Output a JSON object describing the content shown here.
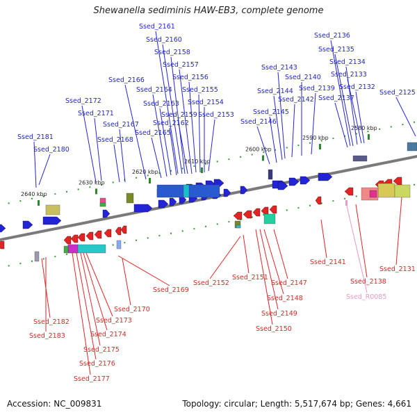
{
  "title": "Shewanella sediminis HAW-EB3, complete genome",
  "accession": "Accession: NC_009831",
  "summary": "Topology: circular; Length: 5,517,674 bp; Genes: 4,661",
  "colors": {
    "forward": "#2323d8",
    "reverse": "#e32424",
    "rna": "#e899c8",
    "backbone": "#7a7a7a",
    "tick": "#2a8a2a"
  },
  "ticks": [
    {
      "label": "2640 kbp"
    },
    {
      "label": "2630 kbp"
    },
    {
      "label": "2620 kbp"
    },
    {
      "label": "2610 kbp"
    },
    {
      "label": "2600 kbp"
    },
    {
      "label": "2590 kbp"
    },
    {
      "label": "2580 kbp"
    }
  ],
  "forward_genes": [
    {
      "label": "Ssed_2181"
    },
    {
      "label": "Ssed_2180"
    },
    {
      "label": "Ssed_2172"
    },
    {
      "label": "Ssed_2171"
    },
    {
      "label": "Ssed_2168"
    },
    {
      "label": "Ssed_2167"
    },
    {
      "label": "Ssed_2166"
    },
    {
      "label": "Ssed_2165"
    },
    {
      "label": "Ssed_2164"
    },
    {
      "label": "Ssed_2163"
    },
    {
      "label": "Ssed_2162"
    },
    {
      "label": "Ssed_2161"
    },
    {
      "label": "Ssed_2160"
    },
    {
      "label": "Ssed_2159"
    },
    {
      "label": "Ssed_2158"
    },
    {
      "label": "Ssed_2157"
    },
    {
      "label": "Ssed_2156"
    },
    {
      "label": "Ssed_2155"
    },
    {
      "label": "Ssed_2154"
    },
    {
      "label": "Ssed_2153"
    },
    {
      "label": "Ssed_2146"
    },
    {
      "label": "Ssed_2145"
    },
    {
      "label": "Ssed_2144"
    },
    {
      "label": "Ssed_2143"
    },
    {
      "label": "Ssed_2142"
    },
    {
      "label": "Ssed_2140"
    },
    {
      "label": "Ssed_2139"
    },
    {
      "label": "Ssed_2137"
    },
    {
      "label": "Ssed_2136"
    },
    {
      "label": "Ssed_2135"
    },
    {
      "label": "Ssed_2134"
    },
    {
      "label": "Ssed_2133"
    },
    {
      "label": "Ssed_2132"
    },
    {
      "label": "Ssed_2125"
    }
  ],
  "reverse_genes": [
    {
      "label": "Ssed_2182"
    },
    {
      "label": "Ssed_2183"
    },
    {
      "label": "Ssed_2173"
    },
    {
      "label": "Ssed_2174"
    },
    {
      "label": "Ssed_2175"
    },
    {
      "label": "Ssed_2176"
    },
    {
      "label": "Ssed_2177"
    },
    {
      "label": "Ssed_2170"
    },
    {
      "label": "Ssed_2169"
    },
    {
      "label": "Ssed_2152"
    },
    {
      "label": "Ssed_2151"
    },
    {
      "label": "Ssed_2147"
    },
    {
      "label": "Ssed_2148"
    },
    {
      "label": "Ssed_2149"
    },
    {
      "label": "Ssed_2150"
    },
    {
      "label": "Ssed_2141"
    },
    {
      "label": "Ssed_2138"
    },
    {
      "label": "Ssed_2131"
    }
  ],
  "rna_genes": [
    {
      "label": "Ssed_R0085"
    }
  ]
}
